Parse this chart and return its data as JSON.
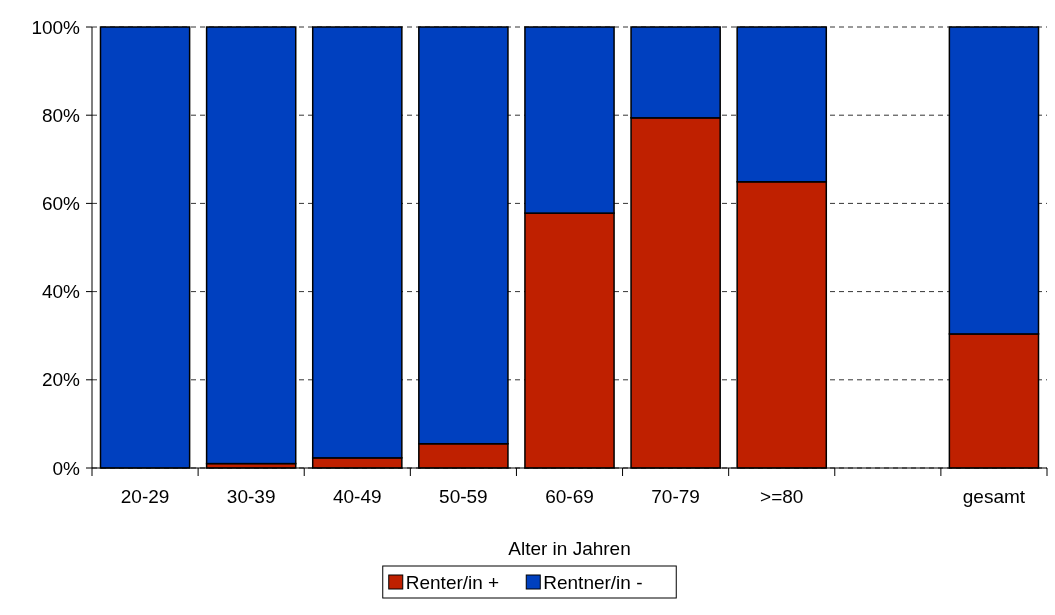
{
  "chart_data": {
    "type": "bar",
    "stacked": true,
    "xlabel": "Alter in Jahren",
    "categories": [
      "20-29",
      "30-39",
      "40-49",
      "50-59",
      "60-69",
      "70-79",
      ">=80",
      null,
      "gesamt"
    ],
    "series": [
      {
        "name": "Renter/in +",
        "color": "#bf2000",
        "values": [
          0,
          1,
          2.3,
          5.5,
          57.8,
          79.4,
          64.9,
          null,
          30.4
        ]
      },
      {
        "name": "Rentner/in -",
        "color": "#0040bf",
        "values": [
          100,
          99,
          97.7,
          94.5,
          42.2,
          20.6,
          35.1,
          null,
          69.6
        ]
      }
    ],
    "ylim": [
      0,
      100
    ],
    "yticks": [
      {
        "value": 0,
        "label": "0%"
      },
      {
        "value": 20,
        "label": "20%"
      },
      {
        "value": 40,
        "label": "40%"
      },
      {
        "value": 60,
        "label": "60%"
      },
      {
        "value": 80,
        "label": "80%"
      },
      {
        "value": 100,
        "label": "100%"
      }
    ],
    "grid": "y",
    "legend": "bottom"
  }
}
